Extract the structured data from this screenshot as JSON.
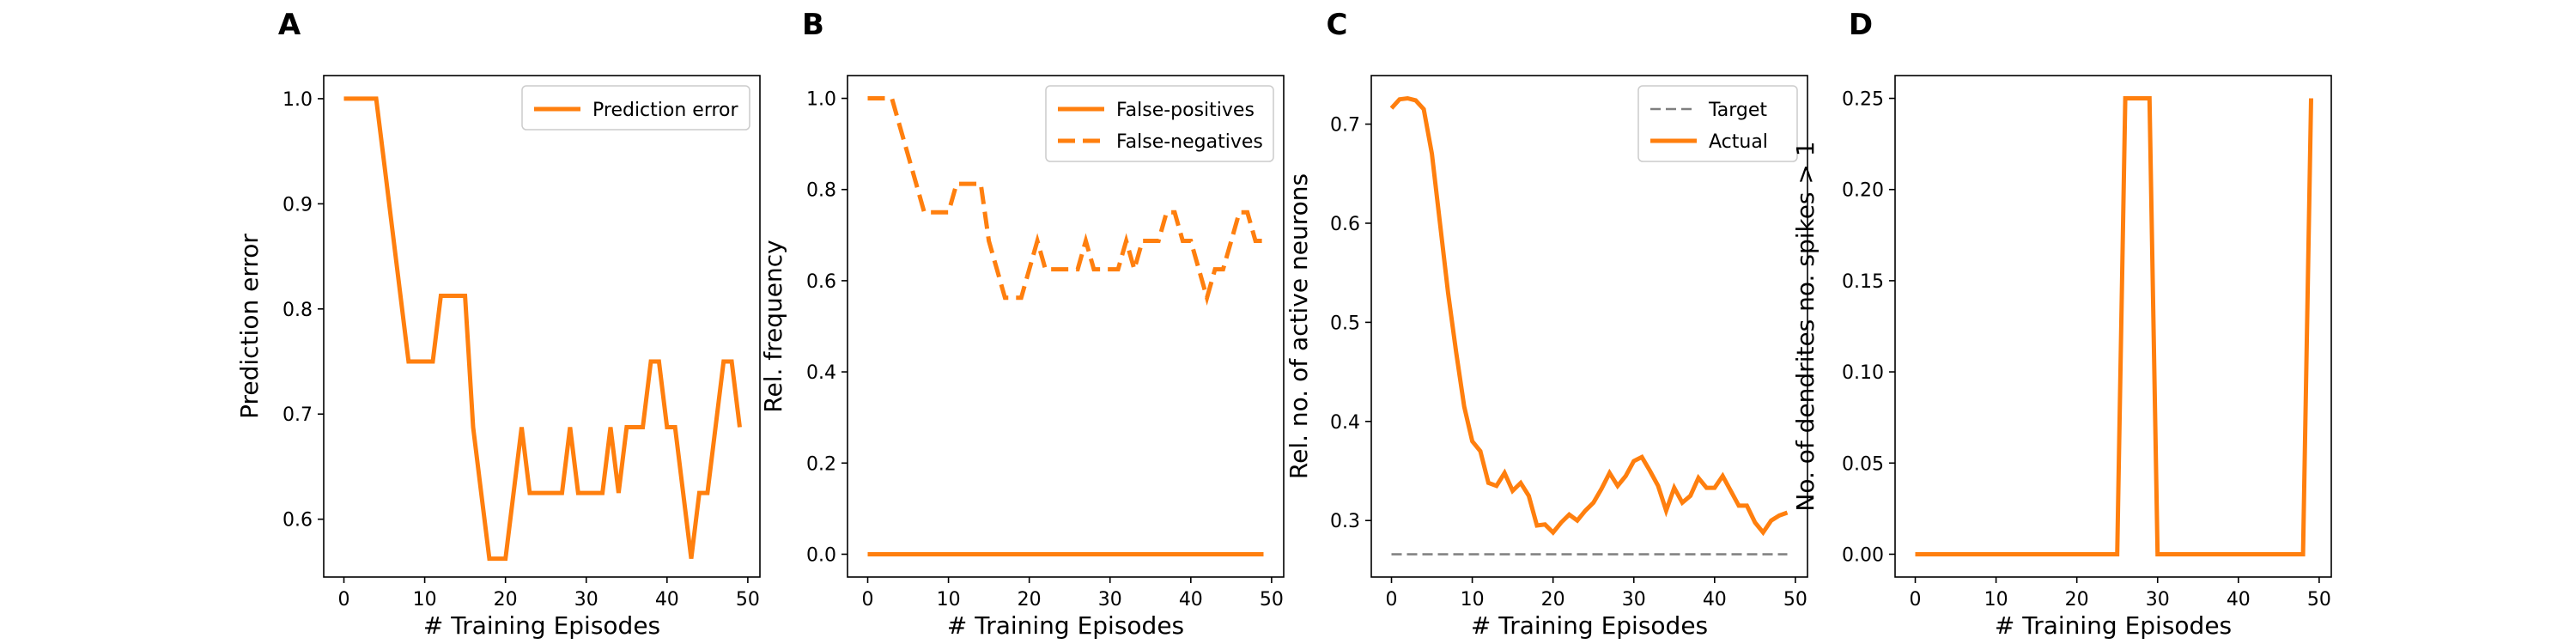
{
  "colors": {
    "orange": "#ff7f0e",
    "target_gray": "#7f7f7f",
    "axis": "#000000",
    "legend_edge": "#cccccc"
  },
  "chart_data": [
    {
      "panel": "A",
      "type": "line",
      "xlabel": "# Training Episodes",
      "ylabel": "Prediction error",
      "xlim": [
        -2.5,
        51.5
      ],
      "ylim": [
        0.545,
        1.022
      ],
      "xticks": [
        0,
        10,
        20,
        30,
        40,
        50
      ],
      "yticks": [
        0.6,
        0.7,
        0.8,
        0.9,
        1.0
      ],
      "yticklabels": [
        "0.6",
        "0.7",
        "0.8",
        "0.9",
        "1.0"
      ],
      "legend": {
        "position": "top-right"
      },
      "series": [
        {
          "name": "Prediction error",
          "color": "#ff7f0e",
          "style": "solid",
          "x": [
            0,
            1,
            2,
            3,
            4,
            5,
            6,
            7,
            8,
            9,
            10,
            11,
            12,
            13,
            14,
            15,
            16,
            17,
            18,
            19,
            20,
            21,
            22,
            23,
            24,
            25,
            26,
            27,
            28,
            29,
            30,
            31,
            32,
            33,
            34,
            35,
            36,
            37,
            38,
            39,
            40,
            41,
            42,
            43,
            44,
            45,
            46,
            47,
            48,
            49
          ],
          "y": [
            1.0,
            1.0,
            1.0,
            1.0,
            1.0,
            0.9375,
            0.875,
            0.8125,
            0.75,
            0.75,
            0.75,
            0.75,
            0.8125,
            0.8125,
            0.8125,
            0.8125,
            0.6875,
            0.625,
            0.5625,
            0.5625,
            0.5625,
            0.625,
            0.6875,
            0.625,
            0.625,
            0.625,
            0.625,
            0.625,
            0.6875,
            0.625,
            0.625,
            0.625,
            0.625,
            0.6875,
            0.625,
            0.6875,
            0.6875,
            0.6875,
            0.75,
            0.75,
            0.6875,
            0.6875,
            0.625,
            0.5625,
            0.625,
            0.625,
            0.6875,
            0.75,
            0.75,
            0.6875
          ]
        }
      ]
    },
    {
      "panel": "B",
      "type": "line",
      "xlabel": "# Training Episodes",
      "ylabel": "Rel. frequency",
      "xlim": [
        -2.5,
        51.5
      ],
      "ylim": [
        -0.05,
        1.05
      ],
      "xticks": [
        0,
        10,
        20,
        30,
        40,
        50
      ],
      "yticks": [
        0.0,
        0.2,
        0.4,
        0.6,
        0.8,
        1.0
      ],
      "yticklabels": [
        "0.0",
        "0.2",
        "0.4",
        "0.6",
        "0.8",
        "1.0"
      ],
      "legend": {
        "position": "top-right"
      },
      "series": [
        {
          "name": "False-positives",
          "color": "#ff7f0e",
          "style": "solid",
          "x": [
            0,
            1,
            2,
            3,
            4,
            5,
            6,
            7,
            8,
            9,
            10,
            11,
            12,
            13,
            14,
            15,
            16,
            17,
            18,
            19,
            20,
            21,
            22,
            23,
            24,
            25,
            26,
            27,
            28,
            29,
            30,
            31,
            32,
            33,
            34,
            35,
            36,
            37,
            38,
            39,
            40,
            41,
            42,
            43,
            44,
            45,
            46,
            47,
            48,
            49
          ],
          "y": [
            0,
            0,
            0,
            0,
            0,
            0,
            0,
            0,
            0,
            0,
            0,
            0,
            0,
            0,
            0,
            0,
            0,
            0,
            0,
            0,
            0,
            0,
            0,
            0,
            0,
            0,
            0,
            0,
            0,
            0,
            0,
            0,
            0,
            0,
            0,
            0,
            0,
            0,
            0,
            0,
            0,
            0,
            0,
            0,
            0,
            0,
            0,
            0,
            0,
            0
          ]
        },
        {
          "name": "False-negatives",
          "color": "#ff7f0e",
          "style": "dashed",
          "x": [
            0,
            1,
            2,
            3,
            4,
            5,
            6,
            7,
            8,
            9,
            10,
            11,
            12,
            13,
            14,
            15,
            16,
            17,
            18,
            19,
            20,
            21,
            22,
            23,
            24,
            25,
            26,
            27,
            28,
            29,
            30,
            31,
            32,
            33,
            34,
            35,
            36,
            37,
            38,
            39,
            40,
            41,
            42,
            43,
            44,
            45,
            46,
            47,
            48,
            49
          ],
          "y": [
            1.0,
            1.0,
            1.0,
            1.0,
            0.9375,
            0.875,
            0.8125,
            0.75,
            0.75,
            0.75,
            0.75,
            0.8125,
            0.8125,
            0.8125,
            0.8125,
            0.6875,
            0.625,
            0.5625,
            0.5625,
            0.5625,
            0.625,
            0.6875,
            0.625,
            0.625,
            0.625,
            0.625,
            0.625,
            0.6875,
            0.625,
            0.625,
            0.625,
            0.625,
            0.6875,
            0.625,
            0.6875,
            0.6875,
            0.6875,
            0.75,
            0.75,
            0.6875,
            0.6875,
            0.625,
            0.5625,
            0.625,
            0.625,
            0.6875,
            0.75,
            0.75,
            0.6875,
            0.6875
          ]
        }
      ]
    },
    {
      "panel": "C",
      "type": "line",
      "xlabel": "# Training Episodes",
      "ylabel": "Rel. no. of active neurons",
      "xlim": [
        -2.5,
        51.5
      ],
      "ylim": [
        0.243,
        0.749
      ],
      "xticks": [
        0,
        10,
        20,
        30,
        40,
        50
      ],
      "yticks": [
        0.3,
        0.4,
        0.5,
        0.6,
        0.7
      ],
      "yticklabels": [
        "0.3",
        "0.4",
        "0.5",
        "0.6",
        "0.7"
      ],
      "legend": {
        "position": "top-right"
      },
      "series": [
        {
          "name": "Target",
          "color": "#7f7f7f",
          "style": "dashed",
          "x": [
            0,
            49
          ],
          "y": [
            0.266,
            0.266
          ]
        },
        {
          "name": "Actual",
          "color": "#ff7f0e",
          "style": "solid",
          "x": [
            0,
            1,
            2,
            3,
            4,
            5,
            6,
            7,
            8,
            9,
            10,
            11,
            12,
            13,
            14,
            15,
            16,
            17,
            18,
            19,
            20,
            21,
            22,
            23,
            24,
            25,
            26,
            27,
            28,
            29,
            30,
            31,
            32,
            33,
            34,
            35,
            36,
            37,
            38,
            39,
            40,
            41,
            42,
            43,
            44,
            45,
            46,
            47,
            48,
            49
          ],
          "y": [
            0.716,
            0.725,
            0.726,
            0.724,
            0.715,
            0.67,
            0.6,
            0.53,
            0.47,
            0.415,
            0.38,
            0.37,
            0.338,
            0.335,
            0.348,
            0.33,
            0.338,
            0.325,
            0.295,
            0.296,
            0.288,
            0.298,
            0.306,
            0.3,
            0.31,
            0.318,
            0.332,
            0.348,
            0.335,
            0.345,
            0.36,
            0.364,
            0.35,
            0.335,
            0.31,
            0.333,
            0.318,
            0.325,
            0.343,
            0.333,
            0.333,
            0.345,
            0.33,
            0.315,
            0.315,
            0.298,
            0.288,
            0.3,
            0.305,
            0.308
          ]
        }
      ]
    },
    {
      "panel": "D",
      "type": "line",
      "xlabel": "# Training Episodes",
      "ylabel": "No. of dendrites no. spikes > 1",
      "xlim": [
        -2.5,
        51.5
      ],
      "ylim": [
        -0.0125,
        0.2625
      ],
      "xticks": [
        0,
        10,
        20,
        30,
        40,
        50
      ],
      "yticks": [
        0.0,
        0.05,
        0.1,
        0.15,
        0.2,
        0.25
      ],
      "yticklabels": [
        "0.00",
        "0.05",
        "0.10",
        "0.15",
        "0.20",
        "0.25"
      ],
      "series": [
        {
          "color": "#ff7f0e",
          "style": "solid",
          "x": [
            0,
            1,
            2,
            3,
            4,
            5,
            6,
            7,
            8,
            9,
            10,
            11,
            12,
            13,
            14,
            15,
            16,
            17,
            18,
            19,
            20,
            21,
            22,
            23,
            24,
            25,
            26,
            27,
            28,
            29,
            30,
            31,
            32,
            33,
            34,
            35,
            36,
            37,
            38,
            39,
            40,
            41,
            42,
            43,
            44,
            45,
            46,
            47,
            48,
            49
          ],
          "y": [
            0,
            0,
            0,
            0,
            0,
            0,
            0,
            0,
            0,
            0,
            0,
            0,
            0,
            0,
            0,
            0,
            0,
            0,
            0,
            0,
            0,
            0,
            0,
            0,
            0,
            0,
            0.25,
            0.25,
            0.25,
            0.25,
            0,
            0,
            0,
            0,
            0,
            0,
            0,
            0,
            0,
            0,
            0,
            0,
            0,
            0,
            0,
            0,
            0,
            0,
            0,
            0.25
          ]
        }
      ]
    }
  ]
}
